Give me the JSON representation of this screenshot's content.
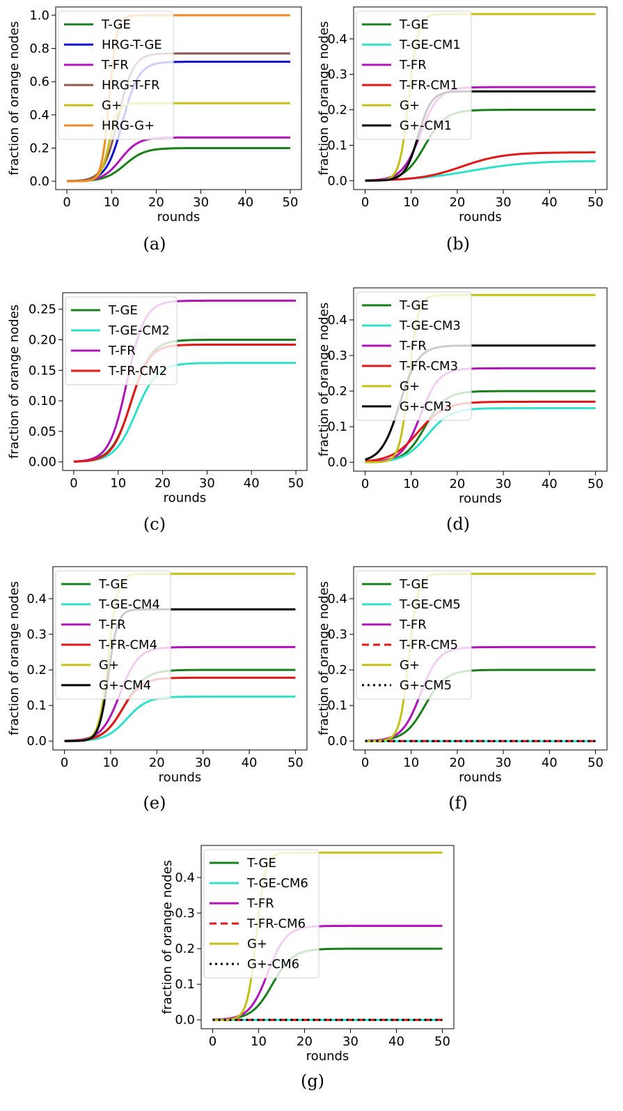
{
  "chart_data": [
    {
      "panel": "a",
      "caption": "(a)",
      "type": "line",
      "xlabel": "rounds",
      "ylabel": "fraction of orange nodes",
      "xlim": [
        -2.5,
        52.5
      ],
      "ylim": [
        -0.05,
        1.05
      ],
      "xticks": [
        "0",
        "10",
        "20",
        "30",
        "40",
        "50"
      ],
      "yticks": [
        "0.0",
        "0.2",
        "0.4",
        "0.6",
        "0.8",
        "1.0"
      ],
      "legend_position": "upper-left",
      "series": [
        {
          "name": "T-GE",
          "color": "#1a7f1a",
          "dash": "solid",
          "final": 0.2,
          "mid": 13,
          "k": 0.45
        },
        {
          "name": "HRG-T-GE",
          "color": "#1010d0",
          "dash": "solid",
          "final": 0.72,
          "mid": 12.5,
          "k": 0.55
        },
        {
          "name": "T-FR",
          "color": "#b014b8",
          "dash": "solid",
          "final": 0.264,
          "mid": 12,
          "k": 0.5
        },
        {
          "name": "HRG-T-FR",
          "color": "#8c5a4e",
          "dash": "solid",
          "final": 0.77,
          "mid": 11.5,
          "k": 0.6
        },
        {
          "name": "G+",
          "color": "#c4c016",
          "dash": "solid",
          "final": 0.47,
          "mid": 9.5,
          "k": 1.0
        },
        {
          "name": "HRG-G+",
          "color": "#f08a24",
          "dash": "solid",
          "final": 1.0,
          "mid": 9.5,
          "k": 1.2
        }
      ]
    },
    {
      "panel": "b",
      "caption": "(b)",
      "type": "line",
      "xlabel": "rounds",
      "ylabel": "fraction of orange nodes",
      "xlim": [
        -2.5,
        52.5
      ],
      "ylim": [
        -0.025,
        0.49
      ],
      "xticks": [
        "0",
        "10",
        "20",
        "30",
        "40",
        "50"
      ],
      "yticks": [
        "0.0",
        "0.1",
        "0.2",
        "0.3",
        "0.4"
      ],
      "legend_position": "upper-left",
      "series": [
        {
          "name": "T-GE",
          "color": "#1a7f1a",
          "dash": "solid",
          "final": 0.2,
          "mid": 13,
          "k": 0.45
        },
        {
          "name": "T-GE-CM1",
          "color": "#30e0c8",
          "dash": "solid",
          "final": 0.056,
          "mid": 23,
          "k": 0.16
        },
        {
          "name": "T-FR",
          "color": "#b014b8",
          "dash": "solid",
          "final": 0.264,
          "mid": 12,
          "k": 0.5
        },
        {
          "name": "T-FR-CM1",
          "color": "#e01818",
          "dash": "solid",
          "final": 0.08,
          "mid": 21,
          "k": 0.22
        },
        {
          "name": "G+",
          "color": "#c4c016",
          "dash": "solid",
          "final": 0.47,
          "mid": 9.5,
          "k": 1.0
        },
        {
          "name": "G+-CM1",
          "color": "#000000",
          "dash": "solid",
          "final": 0.252,
          "mid": 11.5,
          "k": 0.7
        }
      ]
    },
    {
      "panel": "c",
      "caption": "(c)",
      "type": "line",
      "xlabel": "rounds",
      "ylabel": "fraction of orange nodes",
      "xlim": [
        -2.5,
        52.5
      ],
      "ylim": [
        -0.014,
        0.277
      ],
      "xticks": [
        "0",
        "10",
        "20",
        "30",
        "40",
        "50"
      ],
      "yticks": [
        "0.00",
        "0.05",
        "0.10",
        "0.15",
        "0.20",
        "0.25"
      ],
      "legend_position": "upper-left",
      "series": [
        {
          "name": "T-GE",
          "color": "#1a7f1a",
          "dash": "solid",
          "final": 0.2,
          "mid": 13,
          "k": 0.45
        },
        {
          "name": "T-GE-CM2",
          "color": "#30e0c8",
          "dash": "solid",
          "final": 0.162,
          "mid": 14,
          "k": 0.42
        },
        {
          "name": "T-FR",
          "color": "#b014b8",
          "dash": "solid",
          "final": 0.264,
          "mid": 12,
          "k": 0.5
        },
        {
          "name": "T-FR-CM2",
          "color": "#e01818",
          "dash": "solid",
          "final": 0.192,
          "mid": 12.8,
          "k": 0.48
        }
      ]
    },
    {
      "panel": "d",
      "caption": "(d)",
      "type": "line",
      "xlabel": "rounds",
      "ylabel": "fraction of orange nodes",
      "xlim": [
        -2.5,
        52.5
      ],
      "ylim": [
        -0.025,
        0.49
      ],
      "xticks": [
        "0",
        "10",
        "20",
        "30",
        "40",
        "50"
      ],
      "yticks": [
        "0.0",
        "0.1",
        "0.2",
        "0.3",
        "0.4"
      ],
      "legend_position": "upper-left",
      "series": [
        {
          "name": "T-GE",
          "color": "#1a7f1a",
          "dash": "solid",
          "final": 0.2,
          "mid": 13,
          "k": 0.45
        },
        {
          "name": "T-GE-CM3",
          "color": "#30e0c8",
          "dash": "solid",
          "final": 0.152,
          "mid": 13.5,
          "k": 0.4
        },
        {
          "name": "T-FR",
          "color": "#b014b8",
          "dash": "solid",
          "final": 0.264,
          "mid": 12,
          "k": 0.5
        },
        {
          "name": "T-FR-CM3",
          "color": "#e01818",
          "dash": "solid",
          "final": 0.17,
          "mid": 11.5,
          "k": 0.35
        },
        {
          "name": "G+",
          "color": "#c4c016",
          "dash": "solid",
          "final": 0.47,
          "mid": 9.5,
          "k": 1.0
        },
        {
          "name": "G+-CM3",
          "color": "#000000",
          "dash": "solid",
          "final": 0.328,
          "mid": 7.5,
          "k": 0.5
        }
      ]
    },
    {
      "panel": "e",
      "caption": "(e)",
      "type": "line",
      "xlabel": "rounds",
      "ylabel": "fraction of orange nodes",
      "xlim": [
        -2.5,
        52.5
      ],
      "ylim": [
        -0.025,
        0.49
      ],
      "xticks": [
        "0",
        "10",
        "20",
        "30",
        "40",
        "50"
      ],
      "yticks": [
        "0.0",
        "0.1",
        "0.2",
        "0.3",
        "0.4"
      ],
      "legend_position": "upper-left",
      "series": [
        {
          "name": "T-GE",
          "color": "#1a7f1a",
          "dash": "solid",
          "final": 0.2,
          "mid": 13,
          "k": 0.45
        },
        {
          "name": "T-GE-CM4",
          "color": "#30e0c8",
          "dash": "solid",
          "final": 0.125,
          "mid": 13.5,
          "k": 0.45
        },
        {
          "name": "T-FR",
          "color": "#b014b8",
          "dash": "solid",
          "final": 0.264,
          "mid": 12,
          "k": 0.5
        },
        {
          "name": "T-FR-CM4",
          "color": "#e01818",
          "dash": "solid",
          "final": 0.178,
          "mid": 12.5,
          "k": 0.48
        },
        {
          "name": "G+",
          "color": "#c4c016",
          "dash": "solid",
          "final": 0.47,
          "mid": 9.5,
          "k": 1.0
        },
        {
          "name": "G+-CM4",
          "color": "#000000",
          "dash": "solid",
          "final": 0.37,
          "mid": 9.5,
          "k": 1.0
        }
      ]
    },
    {
      "panel": "f",
      "caption": "(f)",
      "type": "line",
      "xlabel": "rounds",
      "ylabel": "fraction of orange nodes",
      "xlim": [
        -2.5,
        52.5
      ],
      "ylim": [
        -0.025,
        0.49
      ],
      "xticks": [
        "0",
        "10",
        "20",
        "30",
        "40",
        "50"
      ],
      "yticks": [
        "0.0",
        "0.1",
        "0.2",
        "0.3",
        "0.4"
      ],
      "legend_position": "upper-left",
      "series": [
        {
          "name": "T-GE",
          "color": "#1a7f1a",
          "dash": "solid",
          "final": 0.2,
          "mid": 13,
          "k": 0.45
        },
        {
          "name": "T-GE-CM5",
          "color": "#30e0c8",
          "dash": "solid",
          "final": 0.0,
          "mid": 13,
          "k": 0.45
        },
        {
          "name": "T-FR",
          "color": "#b014b8",
          "dash": "solid",
          "final": 0.264,
          "mid": 12,
          "k": 0.5
        },
        {
          "name": "T-FR-CM5",
          "color": "#e01818",
          "dash": "dashed",
          "final": 0.0,
          "mid": 12,
          "k": 0.5
        },
        {
          "name": "G+",
          "color": "#c4c016",
          "dash": "solid",
          "final": 0.47,
          "mid": 9.5,
          "k": 1.0
        },
        {
          "name": "G+-CM5",
          "color": "#000000",
          "dash": "dotted",
          "final": 0.0,
          "mid": 9.5,
          "k": 1.0
        }
      ]
    },
    {
      "panel": "g",
      "caption": "(g)",
      "type": "line",
      "xlabel": "rounds",
      "ylabel": "fraction of orange nodes",
      "xlim": [
        -2.5,
        52.5
      ],
      "ylim": [
        -0.025,
        0.49
      ],
      "xticks": [
        "0",
        "10",
        "20",
        "30",
        "40",
        "50"
      ],
      "yticks": [
        "0.0",
        "0.1",
        "0.2",
        "0.3",
        "0.4"
      ],
      "legend_position": "upper-left",
      "series": [
        {
          "name": "T-GE",
          "color": "#1a7f1a",
          "dash": "solid",
          "final": 0.2,
          "mid": 13,
          "k": 0.45
        },
        {
          "name": "T-GE-CM6",
          "color": "#30e0c8",
          "dash": "solid",
          "final": 0.0,
          "mid": 13,
          "k": 0.45
        },
        {
          "name": "T-FR",
          "color": "#b014b8",
          "dash": "solid",
          "final": 0.264,
          "mid": 12,
          "k": 0.5
        },
        {
          "name": "T-FR-CM6",
          "color": "#e01818",
          "dash": "dashed",
          "final": 0.0,
          "mid": 12,
          "k": 0.5
        },
        {
          "name": "G+",
          "color": "#c4c016",
          "dash": "solid",
          "final": 0.47,
          "mid": 9.5,
          "k": 1.0
        },
        {
          "name": "G+-CM6",
          "color": "#000000",
          "dash": "dotted",
          "final": 0.0,
          "mid": 9.5,
          "k": 1.0
        }
      ]
    }
  ]
}
